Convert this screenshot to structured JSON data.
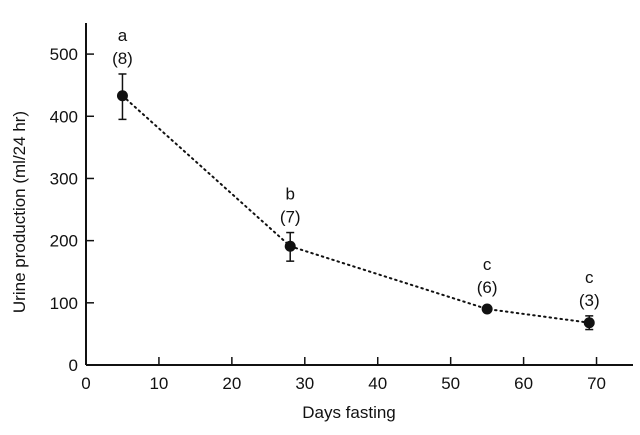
{
  "chart_data": {
    "type": "line",
    "title": "",
    "xlabel": "Days fasting",
    "ylabel": "Urine production (ml/24 hr)",
    "xlim": [
      0,
      75
    ],
    "ylim": [
      0,
      550
    ],
    "xticks": [
      0,
      10,
      20,
      30,
      40,
      50,
      60,
      70
    ],
    "yticks": [
      0,
      100,
      200,
      300,
      400,
      500
    ],
    "grid": false,
    "line_style": "dotted",
    "series": [
      {
        "name": "Urine production",
        "points": [
          {
            "x": 5,
            "y": 433,
            "err_low": 395,
            "err_high": 468,
            "group": "a",
            "n": "(8)"
          },
          {
            "x": 28,
            "y": 191,
            "err_low": 167,
            "err_high": 213,
            "group": "b",
            "n": "(7)"
          },
          {
            "x": 55,
            "y": 90,
            "err_low": 86,
            "err_high": 94,
            "group": "c",
            "n": "(6)"
          },
          {
            "x": 69,
            "y": 68,
            "err_low": 57,
            "err_high": 79,
            "group": "c",
            "n": "(3)"
          }
        ]
      }
    ]
  }
}
